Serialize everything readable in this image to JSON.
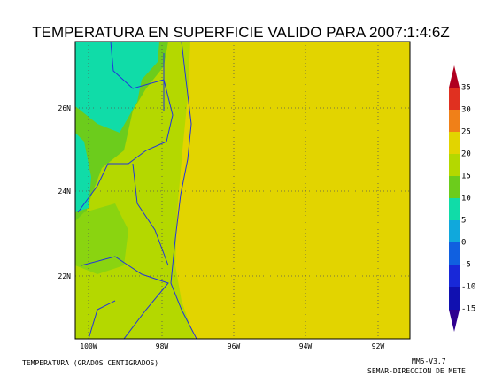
{
  "header": {
    "title": "TEMPERATURA EN SUPERFICIE VALIDO PARA 2007:1:4:6Z"
  },
  "map": {
    "lat_labels": [
      "26N",
      "24N",
      "22N"
    ],
    "lon_labels": [
      "100W",
      "98W",
      "96W",
      "94W",
      "92W"
    ]
  },
  "colorbar": {
    "labels": [
      "35",
      "30",
      "25",
      "20",
      "15",
      "10",
      "5",
      "0",
      "-5",
      "-10",
      "-15"
    ]
  },
  "footer": {
    "left": "TEMPERATURA (GRADOS CENTIGRADOS)",
    "model": "MM5-V3.7",
    "agency": "SEMAR-DIRECCION DE METE"
  }
}
